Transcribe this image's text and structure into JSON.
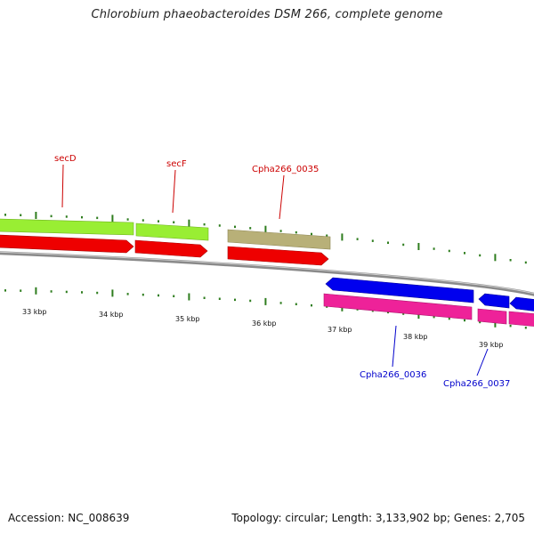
{
  "title": "Chlorobium phaeobacteroides DSM 266, complete genome",
  "footer": {
    "accession": "Accession: NC_008639",
    "topology": "Topology: circular; Length: 3,133,902 bp; Genes: 2,705"
  },
  "axis_labels": [
    "33 kbp",
    "34 kbp",
    "35 kbp",
    "36 kbp",
    "37 kbp",
    "38 kbp",
    "39 kbp"
  ],
  "gene_labels": [
    {
      "text": "secD",
      "color": "#cc0000"
    },
    {
      "text": "secF",
      "color": "#cc0000"
    },
    {
      "text": "Cpha266_0035",
      "color": "#cc0000"
    },
    {
      "text": "Cpha266_0036",
      "color": "#0000cc"
    },
    {
      "text": "Cpha266_0037",
      "color": "#0000cc"
    }
  ],
  "colors": {
    "backbone": "#8a8a8a",
    "tick": "#2e7d1e",
    "forward_gene": "#ee0000",
    "reverse_gene": "#0000ee",
    "function_green": "#99ee33",
    "function_khaki": "#b8b078",
    "function_pink": "#ee2299"
  }
}
